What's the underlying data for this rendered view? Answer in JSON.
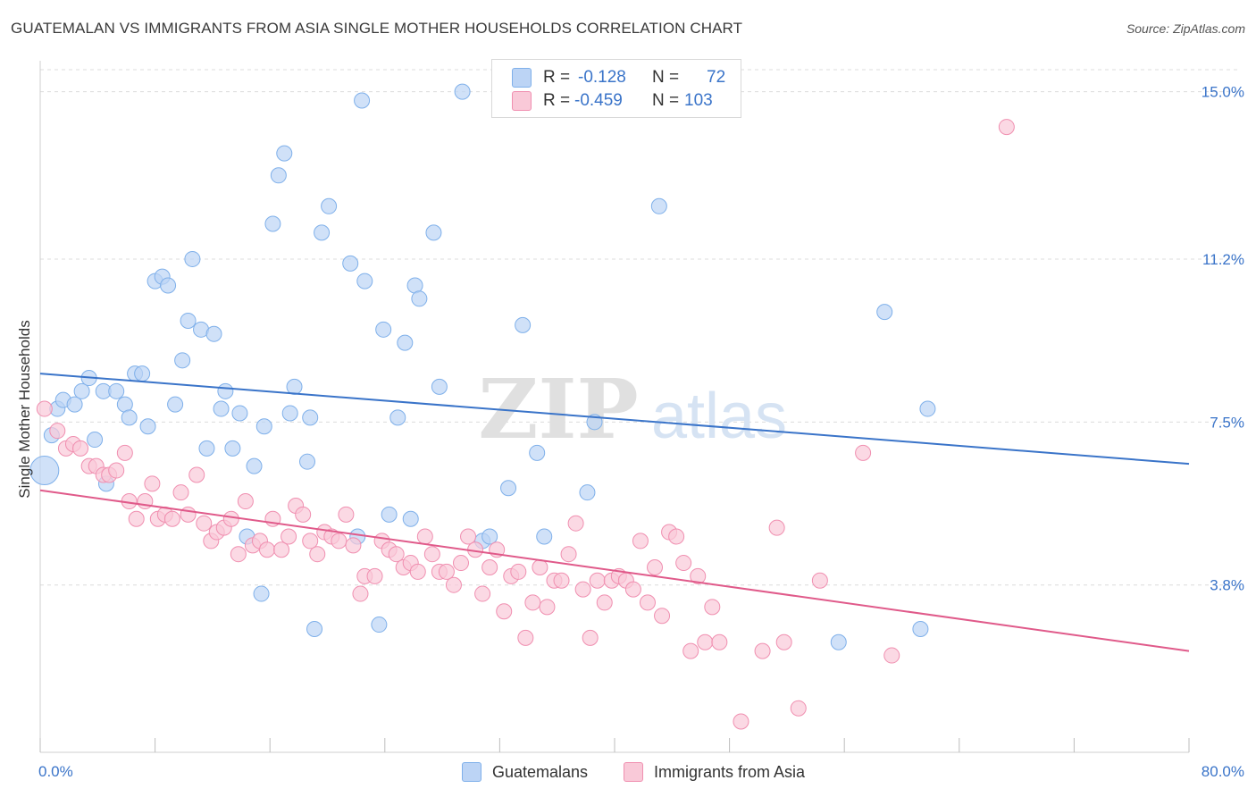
{
  "title": "GUATEMALAN VS IMMIGRANTS FROM ASIA SINGLE MOTHER HOUSEHOLDS CORRELATION CHART",
  "source": "Source: ZipAtlas.com",
  "watermark": {
    "zip": "ZIP",
    "atlas": "atlas"
  },
  "legend_top": {
    "rows": [
      {
        "r_label": "R =",
        "r_value": "-0.128",
        "n_label": "N =",
        "n_value": "72",
        "color": "#7fb0ea",
        "fill": "#bcd4f5"
      },
      {
        "r_label": "R =",
        "r_value": "-0.459",
        "n_label": "N =",
        "n_value": "103",
        "color": "#f08fb0",
        "fill": "#f9c9d8"
      }
    ]
  },
  "legend_bottom": [
    {
      "label": "Guatemalans",
      "fill": "#bcd4f5",
      "stroke": "#7fb0ea"
    },
    {
      "label": "Immigrants from Asia",
      "fill": "#f9c9d8",
      "stroke": "#f08fb0"
    }
  ],
  "chart_data": {
    "type": "scatter",
    "title": "GUATEMALAN VS IMMIGRANTS FROM ASIA SINGLE MOTHER HOUSEHOLDS CORRELATION CHART",
    "xlabel": "",
    "ylabel": "Single Mother Households",
    "xlim": [
      0,
      80
    ],
    "ylim": [
      0,
      15.5
    ],
    "x_tick_labels": [
      "0.0%",
      "80.0%"
    ],
    "y_ticks": [
      3.8,
      7.5,
      11.2,
      15.0
    ],
    "y_tick_labels": [
      "3.8%",
      "7.5%",
      "11.2%",
      "15.0%"
    ],
    "grid": true,
    "legend_placement": "top-center",
    "series": [
      {
        "name": "Guatemalans",
        "color": "#3a74c9",
        "point_fill": "#bcd4f5",
        "point_stroke": "#7fb0ea",
        "trend": {
          "x": [
            0,
            80
          ],
          "y": [
            8.6,
            6.55
          ]
        },
        "points": [
          [
            0.3,
            6.4
          ],
          [
            0.8,
            7.2
          ],
          [
            1.2,
            7.8
          ],
          [
            1.6,
            8.0
          ],
          [
            2.4,
            7.9
          ],
          [
            2.9,
            8.2
          ],
          [
            3.4,
            8.5
          ],
          [
            3.8,
            7.1
          ],
          [
            4.6,
            6.1
          ],
          [
            4.4,
            8.2
          ],
          [
            5.3,
            8.2
          ],
          [
            5.9,
            7.9
          ],
          [
            6.2,
            7.6
          ],
          [
            6.6,
            8.6
          ],
          [
            7.1,
            8.6
          ],
          [
            7.5,
            7.4
          ],
          [
            8.0,
            10.7
          ],
          [
            8.5,
            10.8
          ],
          [
            8.9,
            10.6
          ],
          [
            9.4,
            7.9
          ],
          [
            9.9,
            8.9
          ],
          [
            10.3,
            9.8
          ],
          [
            10.6,
            11.2
          ],
          [
            11.2,
            9.6
          ],
          [
            11.6,
            6.9
          ],
          [
            12.1,
            9.5
          ],
          [
            12.6,
            7.8
          ],
          [
            12.9,
            8.2
          ],
          [
            13.4,
            6.9
          ],
          [
            13.9,
            7.7
          ],
          [
            14.4,
            4.9
          ],
          [
            14.9,
            6.5
          ],
          [
            15.4,
            3.6
          ],
          [
            15.6,
            7.4
          ],
          [
            16.2,
            12.0
          ],
          [
            16.6,
            13.1
          ],
          [
            17.0,
            13.6
          ],
          [
            17.4,
            7.7
          ],
          [
            17.7,
            8.3
          ],
          [
            18.6,
            6.6
          ],
          [
            18.8,
            7.6
          ],
          [
            19.1,
            2.8
          ],
          [
            19.6,
            11.8
          ],
          [
            20.1,
            12.4
          ],
          [
            21.6,
            11.1
          ],
          [
            22.1,
            4.9
          ],
          [
            22.4,
            14.8
          ],
          [
            22.6,
            10.7
          ],
          [
            23.6,
            2.9
          ],
          [
            23.9,
            9.6
          ],
          [
            24.3,
            5.4
          ],
          [
            24.9,
            7.6
          ],
          [
            25.4,
            9.3
          ],
          [
            25.8,
            5.3
          ],
          [
            26.1,
            10.6
          ],
          [
            26.4,
            10.3
          ],
          [
            27.4,
            11.8
          ],
          [
            27.8,
            8.3
          ],
          [
            29.4,
            15.0
          ],
          [
            30.8,
            4.8
          ],
          [
            31.3,
            4.9
          ],
          [
            32.6,
            6.0
          ],
          [
            33.6,
            9.7
          ],
          [
            34.6,
            6.8
          ],
          [
            35.1,
            4.9
          ],
          [
            38.1,
            5.9
          ],
          [
            38.6,
            7.5
          ],
          [
            43.1,
            12.4
          ],
          [
            55.6,
            2.5
          ],
          [
            58.8,
            10.0
          ],
          [
            61.3,
            2.8
          ],
          [
            61.8,
            7.8
          ]
        ]
      },
      {
        "name": "Immigrants from Asia",
        "color": "#e05a8a",
        "point_fill": "#f9c9d8",
        "point_stroke": "#f08fb0",
        "trend": {
          "x": [
            0,
            80
          ],
          "y": [
            5.95,
            2.3
          ]
        },
        "points": [
          [
            0.3,
            7.8
          ],
          [
            1.2,
            7.3
          ],
          [
            1.8,
            6.9
          ],
          [
            2.3,
            7.0
          ],
          [
            2.8,
            6.9
          ],
          [
            3.4,
            6.5
          ],
          [
            3.9,
            6.5
          ],
          [
            4.4,
            6.3
          ],
          [
            4.8,
            6.3
          ],
          [
            5.3,
            6.4
          ],
          [
            5.9,
            6.8
          ],
          [
            6.2,
            5.7
          ],
          [
            6.7,
            5.3
          ],
          [
            7.3,
            5.7
          ],
          [
            7.8,
            6.1
          ],
          [
            8.2,
            5.3
          ],
          [
            8.7,
            5.4
          ],
          [
            9.2,
            5.3
          ],
          [
            9.8,
            5.9
          ],
          [
            10.3,
            5.4
          ],
          [
            10.9,
            6.3
          ],
          [
            11.4,
            5.2
          ],
          [
            11.9,
            4.8
          ],
          [
            12.3,
            5.0
          ],
          [
            12.8,
            5.1
          ],
          [
            13.3,
            5.3
          ],
          [
            13.8,
            4.5
          ],
          [
            14.3,
            5.7
          ],
          [
            14.8,
            4.7
          ],
          [
            15.3,
            4.8
          ],
          [
            15.8,
            4.6
          ],
          [
            16.2,
            5.3
          ],
          [
            16.8,
            4.6
          ],
          [
            17.3,
            4.9
          ],
          [
            17.8,
            5.6
          ],
          [
            18.3,
            5.4
          ],
          [
            18.8,
            4.8
          ],
          [
            19.3,
            4.5
          ],
          [
            19.8,
            5.0
          ],
          [
            20.3,
            4.9
          ],
          [
            20.8,
            4.8
          ],
          [
            21.3,
            5.4
          ],
          [
            21.8,
            4.7
          ],
          [
            22.3,
            3.6
          ],
          [
            22.6,
            4.0
          ],
          [
            23.3,
            4.0
          ],
          [
            23.8,
            4.8
          ],
          [
            24.3,
            4.6
          ],
          [
            24.8,
            4.5
          ],
          [
            25.3,
            4.2
          ],
          [
            25.8,
            4.3
          ],
          [
            26.3,
            4.1
          ],
          [
            26.8,
            4.9
          ],
          [
            27.3,
            4.5
          ],
          [
            27.8,
            4.1
          ],
          [
            28.3,
            4.1
          ],
          [
            28.8,
            3.8
          ],
          [
            29.3,
            4.3
          ],
          [
            29.8,
            4.9
          ],
          [
            30.3,
            4.6
          ],
          [
            30.8,
            3.6
          ],
          [
            31.3,
            4.2
          ],
          [
            31.8,
            4.6
          ],
          [
            32.3,
            3.2
          ],
          [
            32.8,
            4.0
          ],
          [
            33.3,
            4.1
          ],
          [
            33.8,
            2.6
          ],
          [
            34.3,
            3.4
          ],
          [
            34.8,
            4.2
          ],
          [
            35.3,
            3.3
          ],
          [
            35.8,
            3.9
          ],
          [
            36.3,
            3.9
          ],
          [
            36.8,
            4.5
          ],
          [
            37.3,
            5.2
          ],
          [
            37.8,
            3.7
          ],
          [
            38.3,
            2.6
          ],
          [
            38.8,
            3.9
          ],
          [
            39.3,
            3.4
          ],
          [
            39.8,
            3.9
          ],
          [
            40.3,
            4.0
          ],
          [
            40.8,
            3.9
          ],
          [
            41.3,
            3.7
          ],
          [
            41.8,
            4.8
          ],
          [
            42.3,
            3.4
          ],
          [
            42.8,
            4.2
          ],
          [
            43.3,
            3.1
          ],
          [
            43.8,
            5.0
          ],
          [
            44.3,
            4.9
          ],
          [
            44.8,
            4.3
          ],
          [
            45.3,
            2.3
          ],
          [
            45.8,
            4.0
          ],
          [
            46.3,
            2.5
          ],
          [
            46.8,
            3.3
          ],
          [
            47.3,
            2.5
          ],
          [
            48.8,
            0.7
          ],
          [
            50.3,
            2.3
          ],
          [
            51.3,
            5.1
          ],
          [
            51.8,
            2.5
          ],
          [
            52.8,
            1.0
          ],
          [
            54.3,
            3.9
          ],
          [
            57.3,
            6.8
          ],
          [
            59.3,
            2.2
          ],
          [
            67.3,
            14.2
          ]
        ]
      }
    ]
  }
}
